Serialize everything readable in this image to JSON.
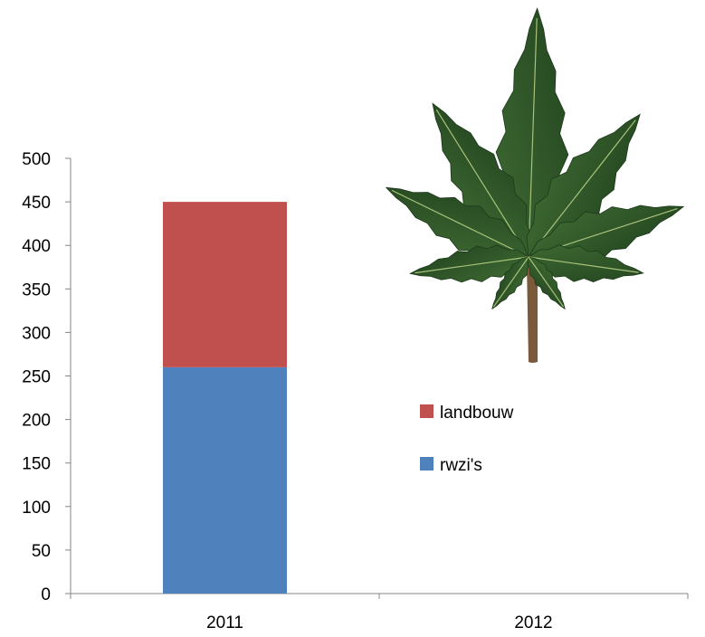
{
  "chart_data": {
    "type": "bar",
    "stacked": true,
    "categories": [
      "2011",
      "2012"
    ],
    "series": [
      {
        "name": "rwzi's",
        "values": [
          260,
          0
        ],
        "color": "#4F81BD"
      },
      {
        "name": "landbouw",
        "values": [
          190,
          0
        ],
        "color": "#C0504D"
      }
    ],
    "ylim": [
      0,
      500
    ],
    "yticks": [
      0,
      50,
      100,
      150,
      200,
      250,
      300,
      350,
      400,
      450,
      500
    ],
    "grid": false,
    "legend": {
      "placement": "center-right",
      "order": [
        "landbouw",
        "rwzi's"
      ]
    },
    "decoration": "cannabis-leaf-image"
  }
}
